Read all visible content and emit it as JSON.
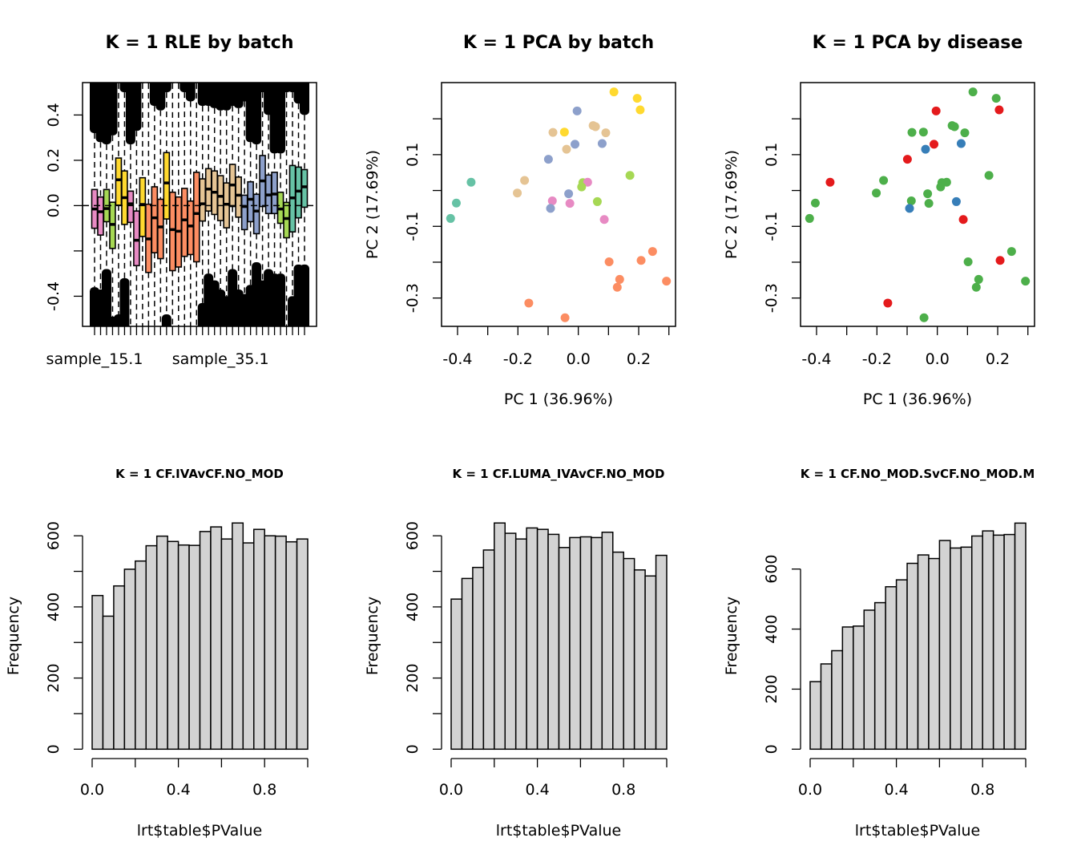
{
  "chart_data": [
    {
      "type": "boxplot",
      "title": "K = 1 RLE by batch",
      "ylim": [
        -0.533,
        0.543
      ],
      "yticks": [
        -0.4,
        -0.2,
        0.0,
        0.2,
        0.4
      ],
      "ytick_labels": [
        "-0.4",
        "",
        "0.0",
        "0.2",
        "0.4"
      ],
      "reference_line": 0,
      "x_tick_labels": [
        {
          "index": 1,
          "label": "sample_15.1"
        },
        {
          "index": 22,
          "label": "sample_35.1"
        }
      ],
      "colors": {
        "teal": "#66C2A5",
        "orange": "#FC8D62",
        "bluegrey": "#8DA0CB",
        "pink": "#E78AC3",
        "lgreen": "#A6D854",
        "yellow": "#FFD92F",
        "tan": "#E5C494"
      },
      "samples": [
        {
          "color": "pink",
          "q3": 0.071,
          "median": -0.015,
          "q1": -0.1,
          "upper_outliers_from": 0.32,
          "lower_outliers_from": -0.36
        },
        {
          "color": "pink",
          "q3": 0.038,
          "median": -0.027,
          "q1": -0.13,
          "upper_outliers_from": 0.28,
          "lower_outliers_from": -0.37
        },
        {
          "color": "lgreen",
          "q3": 0.071,
          "median": -0.013,
          "q1": -0.071,
          "upper_outliers_from": 0.27,
          "lower_outliers_from": -0.28
        },
        {
          "color": "lgreen",
          "q3": 0.015,
          "median": -0.083,
          "q1": -0.189,
          "upper_outliers_from": 0.31,
          "lower_outliers_from": -0.49
        },
        {
          "color": "yellow",
          "q3": 0.21,
          "median": 0.114,
          "q1": 0.002,
          "upper_outliers_from": 0.54,
          "lower_outliers_from": -0.48
        },
        {
          "color": "yellow",
          "q3": 0.153,
          "median": 0.035,
          "q1": -0.083,
          "upper_outliers_from": 0.5,
          "lower_outliers_from": -0.32
        },
        {
          "color": "pink",
          "q3": 0.064,
          "median": 0.008,
          "q1": -0.074,
          "upper_outliers_from": 0.27,
          "lower_outliers_from": -0.54
        },
        {
          "color": "pink",
          "q3": -0.024,
          "median": -0.153,
          "q1": -0.265,
          "upper_outliers_from": 0.33,
          "lower_outliers_from": -0.54
        },
        {
          "color": "yellow",
          "q3": 0.123,
          "median": 0.005,
          "q1": -0.136,
          "upper_outliers_from": 0.54,
          "lower_outliers_from": -0.54
        },
        {
          "color": "orange",
          "q3": 0.006,
          "median": -0.147,
          "q1": -0.295,
          "upper_outliers_from": 0.54,
          "lower_outliers_from": -0.54
        },
        {
          "color": "orange",
          "q3": 0.083,
          "median": -0.054,
          "q1": -0.208,
          "upper_outliers_from": 0.44,
          "lower_outliers_from": -0.54
        },
        {
          "color": "orange",
          "q3": 0.028,
          "median": -0.094,
          "q1": -0.234,
          "upper_outliers_from": 0.42,
          "lower_outliers_from": -0.54
        },
        {
          "color": "yellow",
          "q3": 0.234,
          "median": 0.1,
          "q1": -0.059,
          "upper_outliers_from": 0.5,
          "lower_outliers_from": -0.48
        },
        {
          "color": "orange",
          "q3": 0.059,
          "median": -0.106,
          "q1": -0.287,
          "upper_outliers_from": 0.54,
          "lower_outliers_from": -0.54
        },
        {
          "color": "orange",
          "q3": 0.038,
          "median": -0.113,
          "q1": -0.271,
          "upper_outliers_from": 0.54,
          "lower_outliers_from": -0.54
        },
        {
          "color": "orange",
          "q3": 0.076,
          "median": -0.063,
          "q1": -0.224,
          "upper_outliers_from": 0.5,
          "lower_outliers_from": -0.54
        },
        {
          "color": "orange",
          "q3": 0.02,
          "median": -0.09,
          "q1": -0.216,
          "upper_outliers_from": 0.46,
          "lower_outliers_from": -0.54
        },
        {
          "color": "orange",
          "q3": 0.147,
          "median": -0.035,
          "q1": -0.248,
          "upper_outliers_from": 0.54,
          "lower_outliers_from": -0.54
        },
        {
          "color": "tan",
          "q3": 0.118,
          "median": 0.008,
          "q1": -0.068,
          "upper_outliers_from": 0.44,
          "lower_outliers_from": -0.43
        },
        {
          "color": "tan",
          "q3": 0.163,
          "median": 0.073,
          "q1": -0.024,
          "upper_outliers_from": 0.44,
          "lower_outliers_from": -0.3
        },
        {
          "color": "tan",
          "q3": 0.153,
          "median": 0.059,
          "q1": -0.039,
          "upper_outliers_from": 0.43,
          "lower_outliers_from": -0.33
        },
        {
          "color": "tan",
          "q3": 0.132,
          "median": 0.041,
          "q1": -0.066,
          "upper_outliers_from": 0.42,
          "lower_outliers_from": -0.37
        },
        {
          "color": "tan",
          "q3": 0.1,
          "median": 0.006,
          "q1": -0.098,
          "upper_outliers_from": 0.42,
          "lower_outliers_from": -0.4
        },
        {
          "color": "tan",
          "q3": 0.182,
          "median": 0.091,
          "q1": -0.004,
          "upper_outliers_from": 0.44,
          "lower_outliers_from": -0.28
        },
        {
          "color": "tan",
          "q3": 0.126,
          "median": 0.046,
          "q1": -0.051,
          "upper_outliers_from": 0.43,
          "lower_outliers_from": -0.37
        },
        {
          "color": "bluegrey",
          "q3": 0.046,
          "median": -0.004,
          "q1": -0.106,
          "upper_outliers_from": 0.46,
          "lower_outliers_from": -0.39
        },
        {
          "color": "bluegrey",
          "q3": 0.105,
          "median": 0.028,
          "q1": -0.071,
          "upper_outliers_from": 0.28,
          "lower_outliers_from": -0.35
        },
        {
          "color": "bluegrey",
          "q3": 0.05,
          "median": -0.024,
          "q1": -0.124,
          "upper_outliers_from": 0.27,
          "lower_outliers_from": -0.25
        },
        {
          "color": "bluegrey",
          "q3": 0.221,
          "median": 0.109,
          "q1": -0.004,
          "upper_outliers_from": 0.5,
          "lower_outliers_from": -0.33
        },
        {
          "color": "bluegrey",
          "q3": 0.135,
          "median": 0.047,
          "q1": -0.035,
          "upper_outliers_from": 0.4,
          "lower_outliers_from": -0.28
        },
        {
          "color": "bluegrey",
          "q3": 0.147,
          "median": 0.051,
          "q1": -0.035,
          "upper_outliers_from": 0.23,
          "lower_outliers_from": -0.3
        },
        {
          "color": "lgreen",
          "q3": 0.059,
          "median": -0.015,
          "q1": -0.078,
          "upper_outliers_from": 0.23,
          "lower_outliers_from": -0.3
        },
        {
          "color": "lgreen",
          "q3": 0.014,
          "median": -0.057,
          "q1": -0.142,
          "upper_outliers_from": 0.5,
          "lower_outliers_from": -0.54
        },
        {
          "color": "teal",
          "q3": 0.177,
          "median": 0.034,
          "q1": -0.116,
          "upper_outliers_from": 0.5,
          "lower_outliers_from": -0.4
        },
        {
          "color": "teal",
          "q3": 0.17,
          "median": 0.064,
          "q1": -0.054,
          "upper_outliers_from": 0.45,
          "lower_outliers_from": -0.26
        },
        {
          "color": "teal",
          "q3": 0.159,
          "median": 0.083,
          "q1": -0.007,
          "upper_outliers_from": 0.4,
          "lower_outliers_from": -0.26
        }
      ]
    },
    {
      "type": "scatter",
      "title": "K = 1 PCA by batch",
      "xlabel": "PC 1 (36.96%)",
      "ylabel": "PC 2 (17.69%)",
      "xlim": [
        -0.453,
        0.322
      ],
      "ylim": [
        -0.379,
        0.301
      ],
      "xticks": [
        -0.4,
        -0.3,
        -0.2,
        -0.1,
        0.0,
        0.1,
        0.2,
        0.3
      ],
      "xtick_labels": [
        "-0.4",
        "",
        "-0.2",
        "",
        "0.0",
        "",
        "0.2",
        ""
      ],
      "yticks": [
        -0.3,
        -0.2,
        -0.1,
        0.0,
        0.1,
        0.2
      ],
      "ytick_labels": [
        "-0.3",
        "",
        "-0.1",
        "",
        "0.1",
        ""
      ],
      "colors": {
        "teal": "#66C2A5",
        "orange": "#FC8D62",
        "bluegrey": "#8DA0CB",
        "pink": "#E78AC3",
        "lgreen": "#A6D854",
        "yellow": "#FFD92F",
        "tan": "#E5C494"
      },
      "point_color_key": "batch"
    },
    {
      "type": "scatter",
      "title": "K = 1 PCA by disease",
      "xlabel": "PC 1 (36.96%)",
      "ylabel": "PC 2 (17.69%)",
      "xlim": [
        -0.453,
        0.322
      ],
      "ylim": [
        -0.379,
        0.301
      ],
      "xticks": [
        -0.4,
        -0.3,
        -0.2,
        -0.1,
        0.0,
        0.1,
        0.2,
        0.3
      ],
      "xtick_labels": [
        "-0.4",
        "",
        "-0.2",
        "",
        "0.0",
        "",
        "0.2",
        ""
      ],
      "yticks": [
        -0.3,
        -0.2,
        -0.1,
        0.0,
        0.1,
        0.2
      ],
      "ytick_labels": [
        "-0.3",
        "",
        "-0.1",
        "",
        "0.1",
        ""
      ],
      "colors": {
        "red": "#E41A1C",
        "blue": "#377EB8",
        "green": "#4DAF4A"
      },
      "point_color_key": "disease"
    },
    {
      "type": "bar",
      "title": "K = 1 CF.IVAvCF.NO_MOD",
      "xlabel": "lrt$table$PValue",
      "ylabel": "Frequency",
      "bin_width": 0.05,
      "xlim": [
        0,
        1
      ],
      "xticks": [
        0,
        0.2,
        0.4,
        0.6,
        0.8,
        1.0
      ],
      "xtick_labels": [
        "0.0",
        "",
        "0.4",
        "",
        "0.8",
        ""
      ],
      "ylim": [
        0,
        650
      ],
      "yticks": [
        0,
        100,
        200,
        300,
        400,
        500,
        600
      ],
      "ytick_labels": [
        "0",
        "",
        "200",
        "",
        "400",
        "",
        "600"
      ],
      "fill": "#D3D3D3",
      "values": [
        432,
        374,
        459,
        506,
        529,
        572,
        599,
        584,
        574,
        573,
        612,
        625,
        591,
        636,
        580,
        618,
        600,
        599,
        583,
        591
      ]
    },
    {
      "type": "bar",
      "title": "K = 1 CF.LUMA_IVAvCF.NO_MOD",
      "xlabel": "lrt$table$PValue",
      "ylabel": "Frequency",
      "bin_width": 0.05,
      "xlim": [
        0,
        1
      ],
      "xticks": [
        0,
        0.2,
        0.4,
        0.6,
        0.8,
        1.0
      ],
      "xtick_labels": [
        "0.0",
        "",
        "0.4",
        "",
        "0.8",
        ""
      ],
      "ylim": [
        0,
        650
      ],
      "yticks": [
        0,
        100,
        200,
        300,
        400,
        500,
        600
      ],
      "ytick_labels": [
        "0",
        "",
        "200",
        "",
        "400",
        "",
        "600"
      ],
      "fill": "#D3D3D3",
      "values": [
        422,
        480,
        511,
        560,
        636,
        607,
        591,
        622,
        618,
        604,
        567,
        595,
        597,
        595,
        610,
        554,
        536,
        504,
        487,
        545
      ]
    },
    {
      "type": "bar",
      "title": "K = 1 CF.NO_MOD.SvCF.NO_MOD.M",
      "xlabel": "lrt$table$PValue",
      "ylabel": "Frequency",
      "bin_width": 0.05,
      "xlim": [
        0,
        1
      ],
      "xticks": [
        0,
        0.2,
        0.4,
        0.6,
        0.8,
        1.0
      ],
      "xtick_labels": [
        "0.0",
        "",
        "0.4",
        "",
        "0.8",
        ""
      ],
      "ylim": [
        0,
        770
      ],
      "yticks": [
        0,
        200,
        400,
        600
      ],
      "ytick_labels": [
        "0",
        "200",
        "400",
        "600"
      ],
      "fill": "#D3D3D3",
      "values": [
        225,
        284,
        328,
        407,
        410,
        463,
        488,
        541,
        564,
        619,
        647,
        635,
        695,
        670,
        673,
        710,
        727,
        713,
        715,
        753
      ]
    }
  ],
  "pca_points": [
    {
      "pc1": 0.118,
      "pc2": 0.275,
      "batch": "yellow",
      "disease": "green"
    },
    {
      "pc1": 0.195,
      "pc2": 0.257,
      "batch": "yellow",
      "disease": "green"
    },
    {
      "pc1": 0.205,
      "pc2": 0.225,
      "batch": "yellow",
      "disease": "red"
    },
    {
      "pc1": -0.004,
      "pc2": 0.222,
      "batch": "bluegrey",
      "disease": "red"
    },
    {
      "pc1": -0.084,
      "pc2": 0.162,
      "batch": "tan",
      "disease": "green"
    },
    {
      "pc1": -0.046,
      "pc2": 0.163,
      "batch": "yellow",
      "disease": "green"
    },
    {
      "pc1": 0.049,
      "pc2": 0.181,
      "batch": "tan",
      "disease": "green"
    },
    {
      "pc1": 0.057,
      "pc2": 0.178,
      "batch": "tan",
      "disease": "green"
    },
    {
      "pc1": 0.091,
      "pc2": 0.161,
      "batch": "tan",
      "disease": "green"
    },
    {
      "pc1": -0.011,
      "pc2": 0.129,
      "batch": "bluegrey",
      "disease": "red"
    },
    {
      "pc1": 0.079,
      "pc2": 0.131,
      "batch": "bluegrey",
      "disease": "blue"
    },
    {
      "pc1": -0.039,
      "pc2": 0.115,
      "batch": "tan",
      "disease": "blue"
    },
    {
      "pc1": -0.099,
      "pc2": 0.087,
      "batch": "bluegrey",
      "disease": "red"
    },
    {
      "pc1": 0.171,
      "pc2": 0.042,
      "batch": "lgreen",
      "disease": "green"
    },
    {
      "pc1": -0.178,
      "pc2": 0.028,
      "batch": "tan",
      "disease": "green"
    },
    {
      "pc1": -0.355,
      "pc2": 0.023,
      "batch": "teal",
      "disease": "red"
    },
    {
      "pc1": 0.015,
      "pc2": 0.022,
      "batch": "lgreen",
      "disease": "green"
    },
    {
      "pc1": 0.031,
      "pc2": 0.023,
      "batch": "pink",
      "disease": "green"
    },
    {
      "pc1": 0.011,
      "pc2": 0.01,
      "batch": "lgreen",
      "disease": "green"
    },
    {
      "pc1": -0.202,
      "pc2": -0.007,
      "batch": "tan",
      "disease": "green"
    },
    {
      "pc1": -0.032,
      "pc2": -0.009,
      "batch": "bluegrey",
      "disease": "green"
    },
    {
      "pc1": -0.086,
      "pc2": -0.029,
      "batch": "pink",
      "disease": "green"
    },
    {
      "pc1": 0.063,
      "pc2": -0.031,
      "batch": "lgreen",
      "disease": "blue"
    },
    {
      "pc1": -0.028,
      "pc2": -0.036,
      "batch": "pink",
      "disease": "green"
    },
    {
      "pc1": -0.404,
      "pc2": -0.035,
      "batch": "teal",
      "disease": "green"
    },
    {
      "pc1": -0.092,
      "pc2": -0.05,
      "batch": "bluegrey",
      "disease": "blue"
    },
    {
      "pc1": -0.423,
      "pc2": -0.078,
      "batch": "teal",
      "disease": "green"
    },
    {
      "pc1": 0.086,
      "pc2": -0.081,
      "batch": "pink",
      "disease": "red"
    },
    {
      "pc1": 0.102,
      "pc2": -0.199,
      "batch": "orange",
      "disease": "green"
    },
    {
      "pc1": 0.246,
      "pc2": -0.17,
      "batch": "orange",
      "disease": "green"
    },
    {
      "pc1": 0.208,
      "pc2": -0.195,
      "batch": "orange",
      "disease": "red"
    },
    {
      "pc1": 0.137,
      "pc2": -0.248,
      "batch": "orange",
      "disease": "green"
    },
    {
      "pc1": 0.129,
      "pc2": -0.27,
      "batch": "orange",
      "disease": "green"
    },
    {
      "pc1": 0.292,
      "pc2": -0.253,
      "batch": "orange",
      "disease": "green"
    },
    {
      "pc1": -0.164,
      "pc2": -0.314,
      "batch": "orange",
      "disease": "red"
    },
    {
      "pc1": -0.044,
      "pc2": -0.355,
      "batch": "orange",
      "disease": "green"
    }
  ]
}
